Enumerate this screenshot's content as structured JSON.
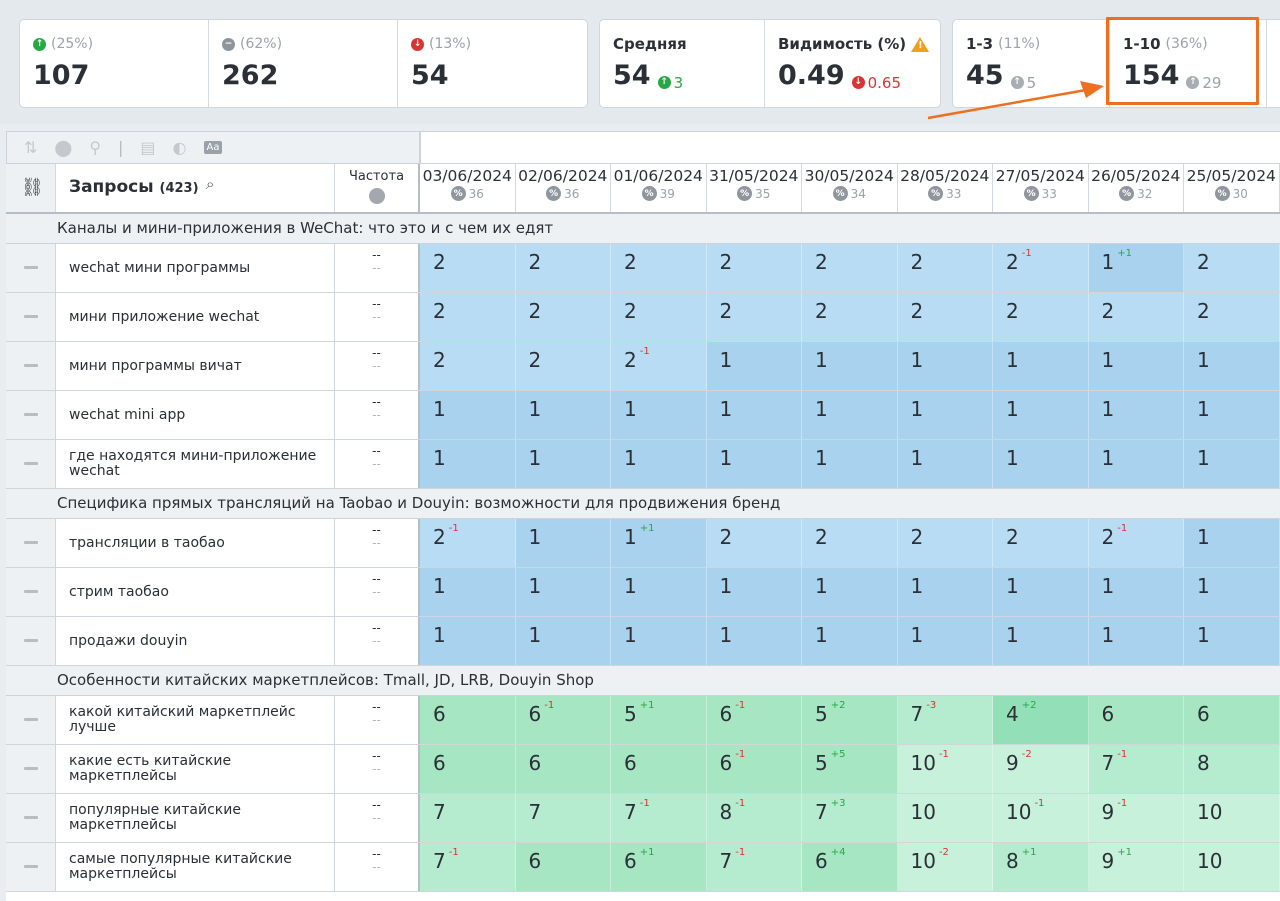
{
  "summary_left": [
    {
      "direction": "up",
      "pct": "(25%)",
      "value": "107"
    },
    {
      "direction": "same",
      "pct": "(62%)",
      "value": "262"
    },
    {
      "direction": "down",
      "pct": "(13%)",
      "value": "54"
    }
  ],
  "avg_card": {
    "label": "Средняя",
    "value": "54",
    "delta": "3",
    "delta_dir": "up"
  },
  "vis_card": {
    "label": "Видимость (%)",
    "value": "0.49",
    "delta": "0.65",
    "delta_dir": "down",
    "warning_icon": "warning-icon"
  },
  "top3_card": {
    "label": "1-3",
    "pct": "(11%)",
    "value": "45",
    "delta": "5"
  },
  "top10_card": {
    "label": "1-10",
    "pct": "(36%)",
    "value": "154",
    "delta": "29"
  },
  "colors": {
    "accent_highlight": "#ee6f1f",
    "up": "#27a844",
    "down": "#d93434",
    "blue_cell": "#abd4ef",
    "green_cell": "#a6e6c3"
  },
  "table": {
    "queries_label": "Запросы",
    "queries_count": "(423)",
    "freq_label": "Частота",
    "dates": [
      {
        "date": "03/06/2024",
        "count": "36"
      },
      {
        "date": "02/06/2024",
        "count": "36"
      },
      {
        "date": "01/06/2024",
        "count": "39"
      },
      {
        "date": "31/05/2024",
        "count": "35"
      },
      {
        "date": "30/05/2024",
        "count": "34"
      },
      {
        "date": "28/05/2024",
        "count": "33"
      },
      {
        "date": "27/05/2024",
        "count": "33"
      },
      {
        "date": "26/05/2024",
        "count": "32"
      },
      {
        "date": "25/05/2024",
        "count": "30"
      }
    ],
    "groups": [
      {
        "title": "Каналы и мини-приложения в WeChat: что это и с чем их едят",
        "rows": [
          {
            "query": "wechat мини программы",
            "freq": [
              "--",
              "--"
            ],
            "cells": [
              [
                "2",
                ""
              ],
              [
                "2",
                ""
              ],
              [
                "2",
                ""
              ],
              [
                "2",
                ""
              ],
              [
                "2",
                ""
              ],
              [
                "2",
                ""
              ],
              [
                "2",
                "-1"
              ],
              [
                "1",
                "+1"
              ],
              [
                "2",
                ""
              ]
            ]
          },
          {
            "query": "мини приложение wechat",
            "freq": [
              "--",
              "--"
            ],
            "cells": [
              [
                "2",
                ""
              ],
              [
                "2",
                ""
              ],
              [
                "2",
                ""
              ],
              [
                "2",
                ""
              ],
              [
                "2",
                ""
              ],
              [
                "2",
                ""
              ],
              [
                "2",
                ""
              ],
              [
                "2",
                ""
              ],
              [
                "2",
                ""
              ]
            ]
          },
          {
            "query": "мини программы вичат",
            "freq": [
              "--",
              "--"
            ],
            "cells": [
              [
                "2",
                ""
              ],
              [
                "2",
                ""
              ],
              [
                "2",
                "-1"
              ],
              [
                "1",
                ""
              ],
              [
                "1",
                ""
              ],
              [
                "1",
                ""
              ],
              [
                "1",
                ""
              ],
              [
                "1",
                ""
              ],
              [
                "1",
                ""
              ]
            ]
          },
          {
            "query": "wechat mini app",
            "freq": [
              "--",
              "--"
            ],
            "cells": [
              [
                "1",
                ""
              ],
              [
                "1",
                ""
              ],
              [
                "1",
                ""
              ],
              [
                "1",
                ""
              ],
              [
                "1",
                ""
              ],
              [
                "1",
                ""
              ],
              [
                "1",
                ""
              ],
              [
                "1",
                ""
              ],
              [
                "1",
                ""
              ]
            ]
          },
          {
            "query": "где находятся мини-приложение wechat",
            "freq": [
              "--",
              "--"
            ],
            "cells": [
              [
                "1",
                ""
              ],
              [
                "1",
                ""
              ],
              [
                "1",
                ""
              ],
              [
                "1",
                ""
              ],
              [
                "1",
                ""
              ],
              [
                "1",
                ""
              ],
              [
                "1",
                ""
              ],
              [
                "1",
                ""
              ],
              [
                "1",
                ""
              ]
            ]
          }
        ]
      },
      {
        "title": "Специфика прямых трансляций на Taobao и Douyin: возможности для продвижения бренд",
        "rows": [
          {
            "query": "трансляции в таобао",
            "freq": [
              "--",
              "--"
            ],
            "cells": [
              [
                "2",
                "-1"
              ],
              [
                "1",
                ""
              ],
              [
                "1",
                "+1"
              ],
              [
                "2",
                ""
              ],
              [
                "2",
                ""
              ],
              [
                "2",
                ""
              ],
              [
                "2",
                ""
              ],
              [
                "2",
                "-1"
              ],
              [
                "1",
                ""
              ]
            ]
          },
          {
            "query": "стрим таобао",
            "freq": [
              "--",
              "--"
            ],
            "cells": [
              [
                "1",
                ""
              ],
              [
                "1",
                ""
              ],
              [
                "1",
                ""
              ],
              [
                "1",
                ""
              ],
              [
                "1",
                ""
              ],
              [
                "1",
                ""
              ],
              [
                "1",
                ""
              ],
              [
                "1",
                ""
              ],
              [
                "1",
                ""
              ]
            ]
          },
          {
            "query": "продажи douyin",
            "freq": [
              "--",
              "--"
            ],
            "cells": [
              [
                "1",
                ""
              ],
              [
                "1",
                ""
              ],
              [
                "1",
                ""
              ],
              [
                "1",
                ""
              ],
              [
                "1",
                ""
              ],
              [
                "1",
                ""
              ],
              [
                "1",
                ""
              ],
              [
                "1",
                ""
              ],
              [
                "1",
                ""
              ]
            ]
          }
        ]
      },
      {
        "title": "Особенности китайских маркетплейсов: Tmall, JD, LRB, Douyin Shop",
        "rows": [
          {
            "query": "какой китайский маркетплейс лучше",
            "freq": [
              "--",
              "--"
            ],
            "cells": [
              [
                "6",
                ""
              ],
              [
                "6",
                "-1"
              ],
              [
                "5",
                "+1"
              ],
              [
                "6",
                "-1"
              ],
              [
                "5",
                "+2"
              ],
              [
                "7",
                "-3"
              ],
              [
                "4",
                "+2"
              ],
              [
                "6",
                ""
              ],
              [
                "6",
                ""
              ]
            ]
          },
          {
            "query": "какие есть китайские маркетплейсы",
            "freq": [
              "--",
              "--"
            ],
            "cells": [
              [
                "6",
                ""
              ],
              [
                "6",
                ""
              ],
              [
                "6",
                ""
              ],
              [
                "6",
                "-1"
              ],
              [
                "5",
                "+5"
              ],
              [
                "10",
                "-1"
              ],
              [
                "9",
                "-2"
              ],
              [
                "7",
                "-1"
              ],
              [
                "8",
                ""
              ]
            ]
          },
          {
            "query": "популярные китайские маркетплейсы",
            "freq": [
              "--",
              "--"
            ],
            "cells": [
              [
                "7",
                ""
              ],
              [
                "7",
                ""
              ],
              [
                "7",
                "-1"
              ],
              [
                "8",
                "-1"
              ],
              [
                "7",
                "+3"
              ],
              [
                "10",
                ""
              ],
              [
                "10",
                "-1"
              ],
              [
                "9",
                "-1"
              ],
              [
                "10",
                ""
              ]
            ]
          },
          {
            "query": "самые популярные китайские маркетплейсы",
            "freq": [
              "--",
              "--"
            ],
            "cells": [
              [
                "7",
                "-1"
              ],
              [
                "6",
                ""
              ],
              [
                "6",
                "+1"
              ],
              [
                "7",
                "-1"
              ],
              [
                "6",
                "+4"
              ],
              [
                "10",
                "-2"
              ],
              [
                "8",
                "+1"
              ],
              [
                "9",
                "+1"
              ],
              [
                "10",
                ""
              ]
            ]
          }
        ]
      }
    ]
  }
}
